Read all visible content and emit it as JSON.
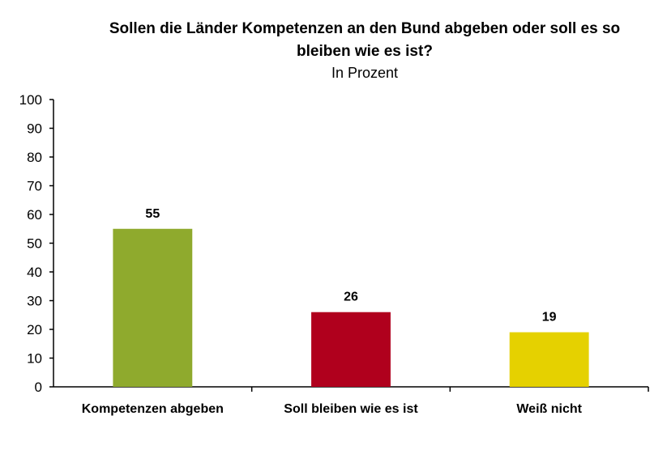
{
  "chart_data": {
    "type": "bar",
    "title": "Sollen die Länder Kompetenzen an den Bund abgeben oder soll es so bleiben wie es ist?",
    "subtitle": "In Prozent",
    "categories": [
      "Kompetenzen abgeben",
      "Soll bleiben wie es ist",
      "Weiß nicht"
    ],
    "values": [
      55,
      26,
      19
    ],
    "colors": [
      "#8faa2d",
      "#b0001d",
      "#e5d100"
    ],
    "ylim": [
      0,
      100
    ],
    "yticks": [
      "0",
      "10",
      "20",
      "30",
      "40",
      "50",
      "60",
      "70",
      "80",
      "90",
      "100"
    ],
    "xlabel": "",
    "ylabel": "",
    "grid": false,
    "data_labels": true
  }
}
